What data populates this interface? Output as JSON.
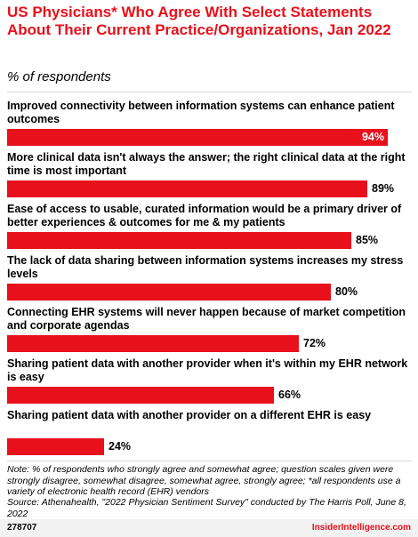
{
  "header": {
    "title": "US Physicians* Who Agree With Select Statements About Their Current Practice/Organizations, Jan 2022",
    "subtitle": "% of respondents"
  },
  "chart_data": {
    "type": "bar",
    "orientation": "horizontal",
    "title": "US Physicians* Who Agree With Select Statements About Their Current Practice/Organizations, Jan 2022",
    "subtitle": "% of respondents",
    "xlim": [
      0,
      100
    ],
    "grid": false,
    "bar_color": "#e8101a",
    "categories": [
      "Improved connectivity between information systems can enhance patient outcomes",
      "More clinical data isn't always the answer; the right clinical data at the right time is most important",
      "Ease of access to usable, curated information would be a primary driver of better experiences & outcomes for me & my patients",
      "The lack of data sharing between information systems increases my stress levels",
      "Connecting EHR systems will never happen because of market competition and corporate agendas",
      "Sharing patient data with another provider when it's within my EHR network is easy",
      "Sharing patient data with another provider on a different EHR is easy"
    ],
    "values": [
      94,
      89,
      85,
      80,
      72,
      66,
      24
    ],
    "value_labels": [
      "94%",
      "89%",
      "85%",
      "80%",
      "72%",
      "66%",
      "24%"
    ]
  },
  "footer": {
    "note": "Note: % of respondents who strongly agree and somewhat agree; question scales given were strongly disagree, somewhat disagree, somewhat agree, strongly agree; *all respondents use a variety of electronic health record (EHR) vendors",
    "source": "Source: Athenahealth, \"2022 Physician Sentiment Survey\" conducted by The Harris Poll, June 8, 2022",
    "chart_id": "278707",
    "brand": "InsiderIntelligence.com"
  }
}
